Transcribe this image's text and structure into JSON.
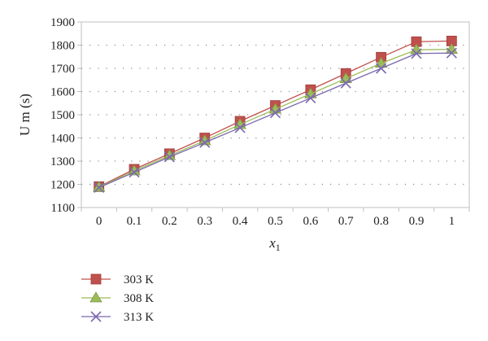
{
  "chart_data": {
    "type": "line",
    "title": "",
    "xlabel": "x",
    "xlabel_sub": "1",
    "ylabel": "U m (s)",
    "x": [
      0,
      0.1,
      0.2,
      0.3,
      0.4,
      0.5,
      0.6,
      0.7,
      0.8,
      0.9,
      1
    ],
    "x_tick_labels": [
      "0",
      "0.1",
      "0.2",
      "0.3",
      "0.4",
      "0.5",
      "0.6",
      "0.7",
      "0.8",
      "0.9",
      "1"
    ],
    "y_ticks": [
      1100,
      1200,
      1300,
      1400,
      1500,
      1600,
      1700,
      1800,
      1900
    ],
    "y_tick_labels": [
      "1100",
      "1200",
      "1300",
      "1400",
      "1500",
      "1600",
      "1700",
      "1800",
      "1900"
    ],
    "ylim": [
      1100,
      1900
    ],
    "grid": "horizontal-dotted",
    "legend_position": "bottom-left",
    "series": [
      {
        "name": "303 K",
        "color": "#c0504d",
        "marker": "square",
        "values": [
          1190,
          1265,
          1332,
          1400,
          1472,
          1540,
          1608,
          1678,
          1748,
          1815,
          1818
        ]
      },
      {
        "name": "308 K",
        "color": "#9bbb59",
        "marker": "triangle",
        "values": [
          1188,
          1258,
          1324,
          1388,
          1458,
          1524,
          1590,
          1656,
          1722,
          1780,
          1782
        ]
      },
      {
        "name": "313 K",
        "color": "#7b68ae",
        "marker": "x",
        "values": [
          1186,
          1252,
          1318,
          1380,
          1444,
          1508,
          1572,
          1636,
          1700,
          1764,
          1766
        ]
      }
    ]
  }
}
